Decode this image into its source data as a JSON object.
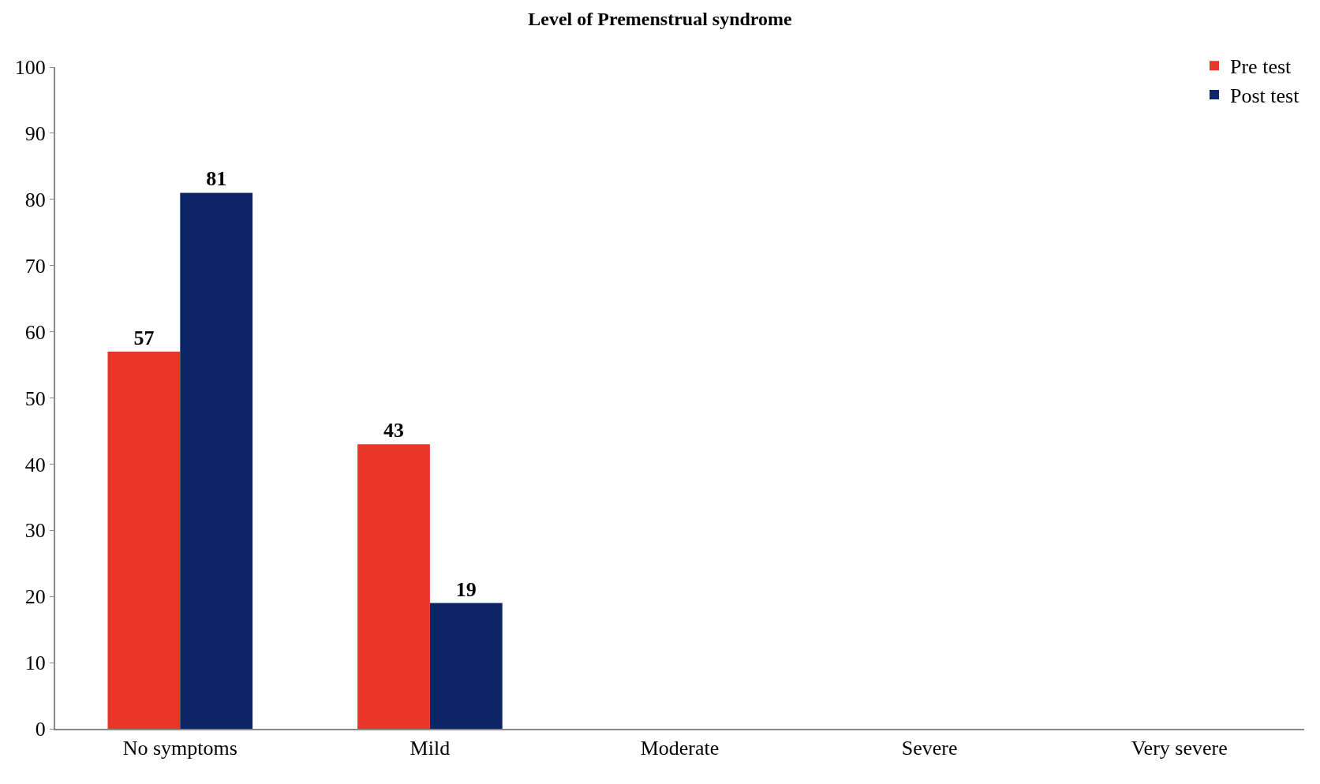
{
  "chart_data": {
    "type": "bar",
    "title": "Level of Premenstrual syndrome",
    "categories": [
      "No symptoms",
      "Mild",
      "Moderate",
      "Severe",
      "Very severe"
    ],
    "series": [
      {
        "name": "Pre test",
        "color": "#e8372a",
        "values": [
          57,
          43,
          0,
          0,
          0
        ],
        "value_labels": [
          "57",
          "43",
          null,
          null,
          null
        ]
      },
      {
        "name": "Post test",
        "color": "#0c2566",
        "values": [
          81,
          19,
          0,
          0,
          0
        ],
        "value_labels": [
          "81",
          "19",
          null,
          null,
          null
        ]
      }
    ],
    "ylim": [
      0,
      100
    ],
    "yticks": [
      0,
      10,
      20,
      30,
      40,
      50,
      60,
      70,
      80,
      90,
      100
    ],
    "legend": "top right"
  }
}
